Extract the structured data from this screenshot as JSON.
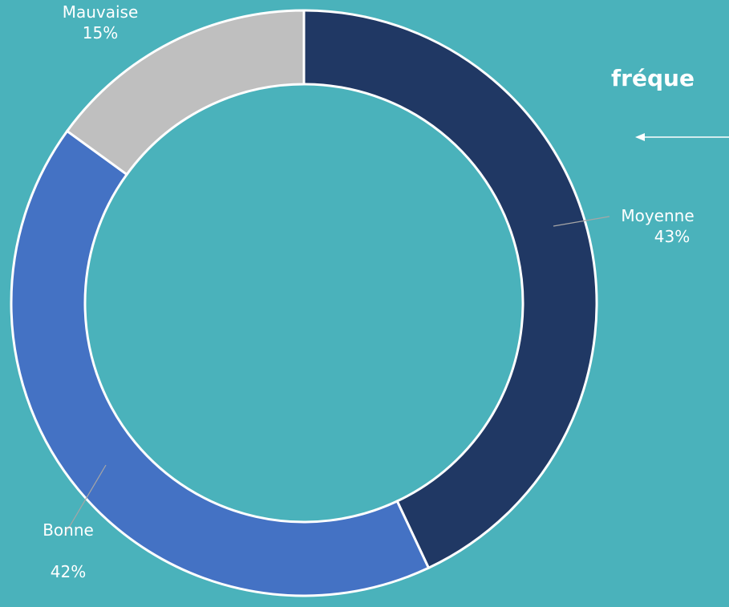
{
  "chart_data": {
    "type": "donut",
    "title": "fréque",
    "categories": [
      "Moyenne",
      "Bonne",
      "Mauvaise"
    ],
    "values": [
      43,
      42,
      15
    ],
    "value_labels": [
      "43%",
      "42%",
      "15%"
    ],
    "colors": [
      "#203864",
      "#4472c4",
      "#bfbfbf"
    ]
  }
}
